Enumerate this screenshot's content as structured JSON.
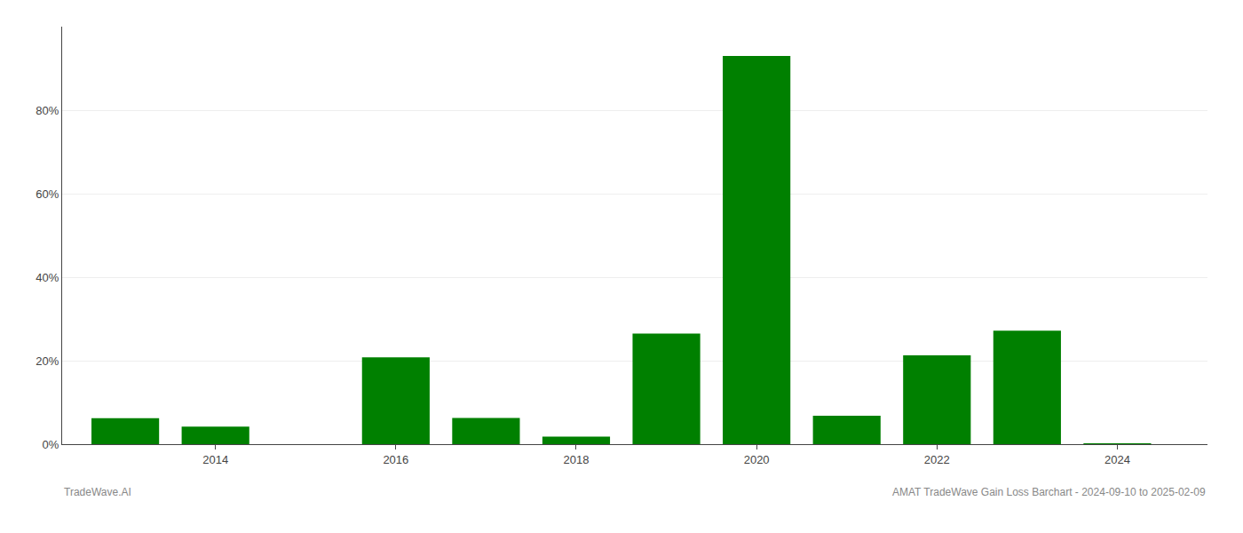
{
  "chart_data": {
    "type": "bar",
    "x": [
      2013,
      2014,
      2015,
      2016,
      2017,
      2018,
      2019,
      2020,
      2021,
      2022,
      2023,
      2024
    ],
    "values": [
      0.062,
      0.042,
      0.0,
      0.208,
      0.063,
      0.018,
      0.265,
      0.93,
      0.068,
      0.213,
      0.272,
      0.001
    ],
    "color": "#008000",
    "xlim": [
      2012.3,
      2025.0
    ],
    "xticks": [
      2014,
      2016,
      2018,
      2020,
      2022,
      2024
    ],
    "ylim": [
      0,
      1.0
    ],
    "yticks": [
      {
        "value": 0,
        "label": "0%"
      },
      {
        "value": 0.2,
        "label": "20%"
      },
      {
        "value": 0.4,
        "label": "40%"
      },
      {
        "value": 0.6,
        "label": "60%"
      },
      {
        "value": 0.8,
        "label": "80%"
      }
    ],
    "grid": true,
    "annotations": [
      "TradeWave.AI",
      "AMAT TradeWave Gain Loss Barchart - 2024-09-10 to 2025-02-09"
    ]
  }
}
